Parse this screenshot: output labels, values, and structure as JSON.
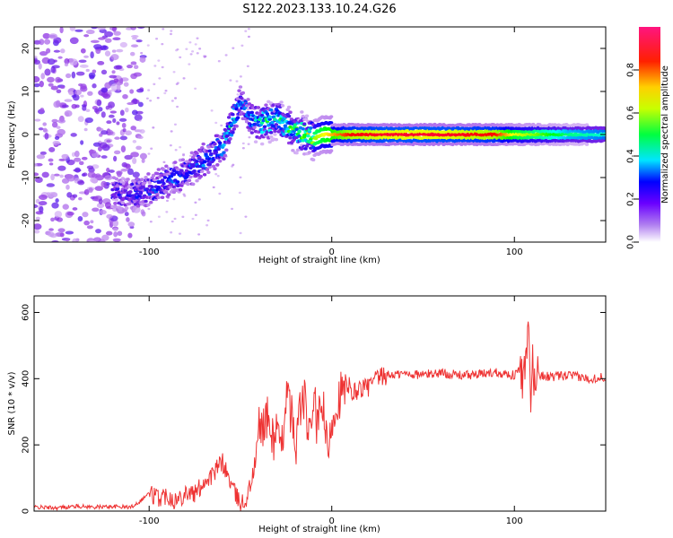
{
  "title": "S122.2023.133.10.24.G26",
  "chart_data": [
    {
      "type": "heatmap",
      "title": "S122.2023.133.10.24.G26",
      "xlabel": "Height of straight line (km)",
      "ylabel": "Frequency (Hz)",
      "xlim": [
        -163,
        150
      ],
      "ylim": [
        -25,
        25
      ],
      "x_ticks": [
        -100,
        0,
        100
      ],
      "y_ticks": [
        -20,
        -10,
        0,
        10,
        20
      ],
      "colorbar": {
        "label": "Normalized spectral amplitude",
        "range": [
          0,
          1
        ],
        "ticks": [
          "0.0",
          "0.2",
          "0.4",
          "0.6",
          "0.8"
        ],
        "colors": [
          "#ffffff",
          "#8a2be2",
          "#0000ff",
          "#00ffff",
          "#00ff00",
          "#ffff00",
          "#ff0000",
          "#ff1493"
        ]
      },
      "ridge": {
        "x": [
          -160,
          -130,
          -110,
          -100,
          -90,
          -80,
          -70,
          -60,
          -55,
          -50,
          -45,
          -40,
          -35,
          -30,
          -25,
          -20,
          -15,
          -10,
          -5,
          0,
          10,
          30,
          60,
          90,
          100,
          110,
          130,
          150
        ],
        "y": [
          -12,
          -13,
          -14,
          -13,
          -11,
          -9,
          -6,
          -3,
          2,
          8,
          4,
          3,
          3,
          4,
          2,
          1,
          0,
          -1,
          0,
          0,
          0,
          0,
          0,
          0,
          0,
          0,
          0,
          0
        ],
        "amplitude": [
          0.15,
          0.2,
          0.25,
          0.3,
          0.3,
          0.3,
          0.35,
          0.4,
          0.45,
          0.35,
          0.4,
          0.45,
          0.5,
          0.45,
          0.5,
          0.55,
          0.6,
          0.65,
          0.7,
          0.75,
          0.85,
          0.9,
          0.9,
          0.85,
          0.7,
          0.65,
          0.5,
          0.45
        ]
      }
    },
    {
      "type": "line",
      "xlabel": "Height of straight line (km)",
      "ylabel": "SNR (10 * v/v)",
      "xlim": [
        -163,
        150
      ],
      "ylim": [
        0,
        650
      ],
      "x_ticks": [
        -100,
        0,
        100
      ],
      "y_ticks": [
        0,
        200,
        400,
        600
      ],
      "color": "#ee3333",
      "series": [
        {
          "x": [
            -163,
            -150,
            -140,
            -130,
            -120,
            -110,
            -105,
            -100,
            -95,
            -90,
            -85,
            -80,
            -75,
            -70,
            -65,
            -60,
            -55,
            -52,
            -50,
            -48,
            -45,
            -42,
            -40,
            -35,
            -32,
            -30,
            -28,
            -25,
            -22,
            -20,
            -18,
            -15,
            -12,
            -10,
            -8,
            -5,
            -2,
            0,
            5,
            10,
            15,
            20,
            25,
            30,
            40,
            50,
            60,
            70,
            80,
            90,
            95,
            100,
            103,
            105,
            107,
            108,
            109,
            110,
            111,
            112,
            115,
            120,
            130,
            140,
            150
          ],
          "y": [
            12,
            10,
            15,
            12,
            14,
            12,
            30,
            55,
            40,
            50,
            30,
            60,
            50,
            90,
            110,
            150,
            80,
            40,
            30,
            20,
            70,
            140,
            250,
            280,
            210,
            270,
            150,
            360,
            290,
            180,
            300,
            340,
            200,
            360,
            250,
            330,
            150,
            280,
            360,
            350,
            370,
            375,
            400,
            410,
            415,
            412,
            418,
            410,
            412,
            420,
            415,
            410,
            430,
            390,
            480,
            540,
            300,
            460,
            380,
            420,
            410,
            405,
            410,
            400,
            405
          ]
        }
      ]
    }
  ]
}
